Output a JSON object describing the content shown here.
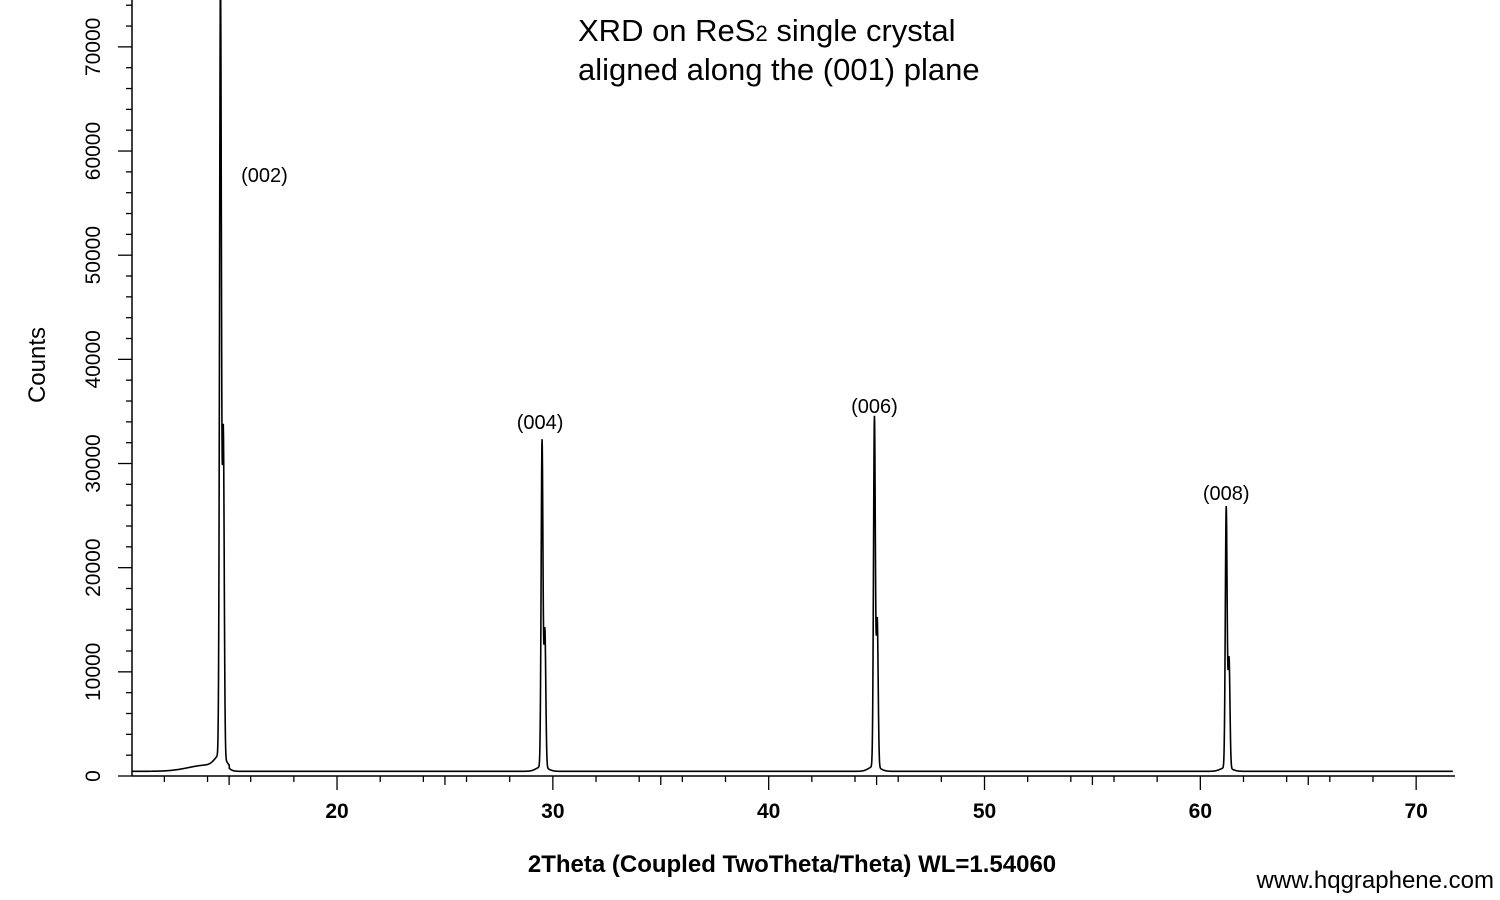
{
  "chart_data": {
    "type": "line",
    "title_line1_main": "XRD on ReS",
    "title_line1_sub": "2",
    "title_line1_rest": " single crystal",
    "title_line2": "aligned along the (001) plane",
    "xlabel": "2Theta (Coupled TwoTheta/Theta) WL=1.54060",
    "ylabel": "Counts",
    "xlim": [
      10.5,
      71.8
    ],
    "ylim": [
      0,
      74500
    ],
    "x_ticks": [
      "20",
      "30",
      "40",
      "50",
      "60",
      "70"
    ],
    "y_ticks": [
      "0",
      "10000",
      "20000",
      "30000",
      "40000",
      "50000",
      "60000",
      "70000"
    ],
    "series": [
      {
        "peaks": [
          {
            "x": 14.6,
            "y": 74500,
            "label": "(002)"
          },
          {
            "x": 29.5,
            "y": 31300,
            "label": "(004)"
          },
          {
            "x": 44.9,
            "y": 33500,
            "label": "(006)"
          },
          {
            "x": 61.2,
            "y": 25000,
            "label": "(008)"
          }
        ],
        "color": "#000000"
      }
    ],
    "grid": false,
    "legend": "none"
  },
  "credit": "www.hqgraphene.com"
}
